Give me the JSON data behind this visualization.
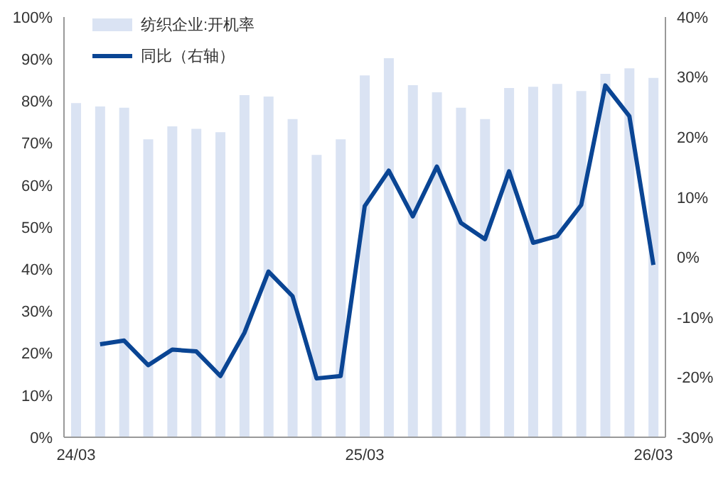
{
  "chart_data": {
    "type": "bar",
    "categories": [
      "24/03",
      null,
      null,
      null,
      null,
      null,
      null,
      null,
      null,
      null,
      null,
      null,
      "25/03",
      null,
      null,
      null,
      null,
      null,
      null,
      null,
      null,
      null,
      null,
      null,
      "26/03"
    ],
    "series": [
      {
        "name": "纺织企业:开机率",
        "color": "#dae3f3",
        "values": [
          79.5,
          78.7,
          78.4,
          70.9,
          74.0,
          73.4,
          72.6,
          81.4,
          81.1,
          75.7,
          67.2,
          70.9,
          86.1,
          90.2,
          83.8,
          82.1,
          78.4,
          75.7,
          83.1,
          83.4,
          84.1,
          82.4,
          86.5,
          87.8,
          85.5
        ]
      },
      {
        "name": "同比（右轴）",
        "type": "line",
        "axis": "y2",
        "color": "#0a4594",
        "values": [
          null,
          -14.5,
          -13.9,
          -18.0,
          -15.4,
          -15.7,
          -19.8,
          -12.6,
          -2.4,
          -6.5,
          -20.2,
          -19.8,
          8.5,
          14.4,
          6.8,
          15.1,
          5.7,
          3.0,
          14.3,
          2.4,
          3.5,
          8.7,
          28.6,
          23.5,
          -1.3
        ]
      }
    ],
    "ylim": [
      0,
      100
    ],
    "yticks": [
      {
        "value": 0,
        "label": "0%"
      },
      {
        "value": 10,
        "label": "10%"
      },
      {
        "value": 20,
        "label": "20%"
      },
      {
        "value": 30,
        "label": "30%"
      },
      {
        "value": 40,
        "label": "40%"
      },
      {
        "value": 50,
        "label": "50%"
      },
      {
        "value": 60,
        "label": "60%"
      },
      {
        "value": 70,
        "label": "70%"
      },
      {
        "value": 80,
        "label": "80%"
      },
      {
        "value": 90,
        "label": "90%"
      },
      {
        "value": 100,
        "label": "100%"
      }
    ],
    "y2lim": [
      -30,
      40
    ],
    "y2ticks": [
      {
        "value": -30,
        "label": "-30%"
      },
      {
        "value": -20,
        "label": "-20%"
      },
      {
        "value": -10,
        "label": "-10%"
      },
      {
        "value": 0,
        "label": "0%"
      },
      {
        "value": 10,
        "label": "10%"
      },
      {
        "value": 20,
        "label": "20%"
      },
      {
        "value": 30,
        "label": "30%"
      },
      {
        "value": 40,
        "label": "40%"
      }
    ],
    "legend": "top left",
    "marker": "none",
    "grid": false
  }
}
